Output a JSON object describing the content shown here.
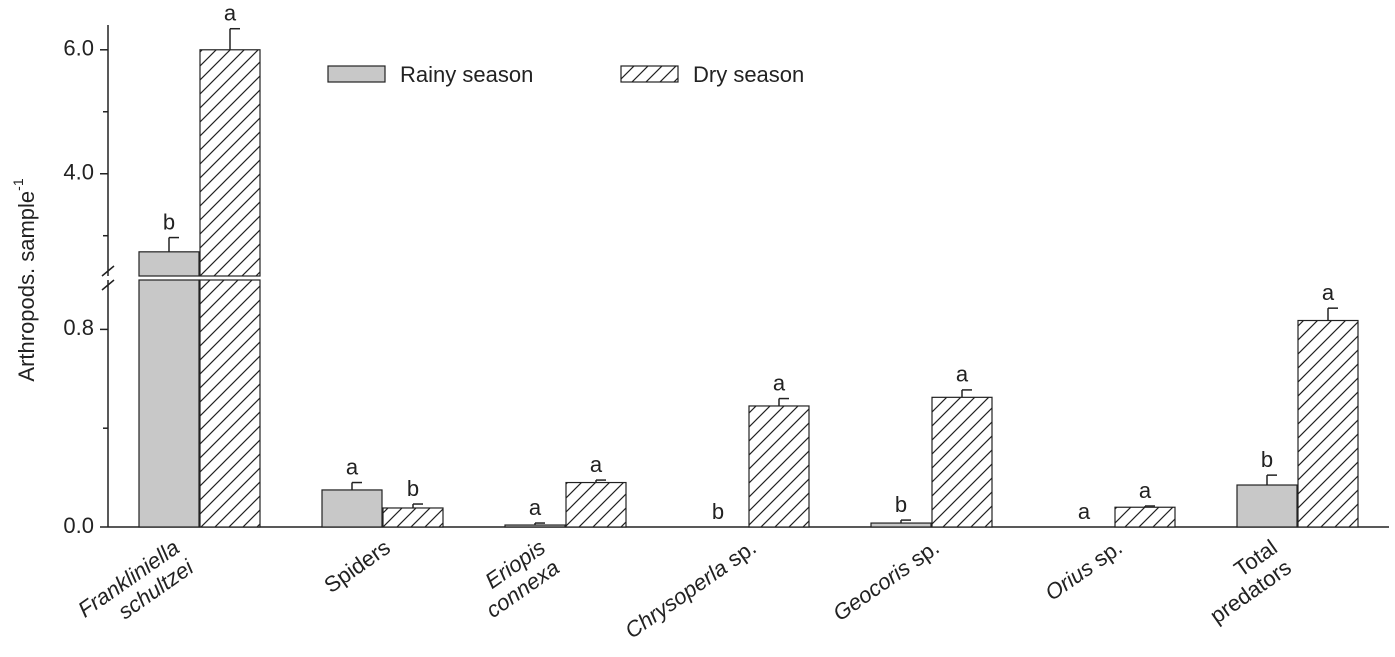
{
  "chart_data": {
    "type": "bar",
    "ylabel": "Arthropods. sample",
    "ylabel_superscript": "-1",
    "categories": [
      [
        "Frankliniella",
        "schultzei"
      ],
      [
        "Spiders"
      ],
      [
        "Eriopis",
        "connexa"
      ],
      [
        "Chrysoperla sp."
      ],
      [
        "Geocoris sp."
      ],
      [
        "Orius sp."
      ],
      [
        "Total",
        "predators"
      ]
    ],
    "italic_words": [
      "Frankliniella",
      "schultzei",
      "Eriopis",
      "connexa",
      "Chrysoperla",
      "Geocoris",
      "Orius"
    ],
    "axis_break": true,
    "segments": [
      {
        "ylim": [
          0,
          1.0
        ],
        "yticks": [
          {
            "value": 0,
            "label": "0.0"
          },
          {
            "value": 0.8,
            "label": "0.8"
          }
        ],
        "yticks_minor": [
          0.4
        ]
      },
      {
        "ylim": [
          2.35,
          6.4
        ],
        "yticks": [
          {
            "value": 4,
            "label": "4.0"
          },
          {
            "value": 6,
            "label": "6.0"
          }
        ],
        "yticks_minor": [
          3,
          5
        ]
      }
    ],
    "legend": "top",
    "series": [
      {
        "name": "Rainy season",
        "color": "#c8c8c8",
        "hatch": false,
        "values": [
          2.74,
          0.15,
          0.008,
          0,
          0.016,
          0,
          0.17
        ],
        "errors": [
          0.23,
          0.03,
          0.008,
          0,
          0.012,
          0,
          0.04
        ],
        "letters": [
          "b",
          "a",
          "a",
          "b",
          "b",
          "a",
          "b"
        ]
      },
      {
        "name": "Dry season",
        "color": "#ffffff",
        "hatch": true,
        "values": [
          6.0,
          0.077,
          0.18,
          0.49,
          0.525,
          0.08,
          0.836
        ],
        "errors": [
          0.34,
          0.016,
          0.01,
          0.03,
          0.03,
          0.005,
          0.05
        ],
        "letters": [
          "a",
          "b",
          "a",
          "a",
          "a",
          "a",
          "a"
        ]
      }
    ]
  }
}
